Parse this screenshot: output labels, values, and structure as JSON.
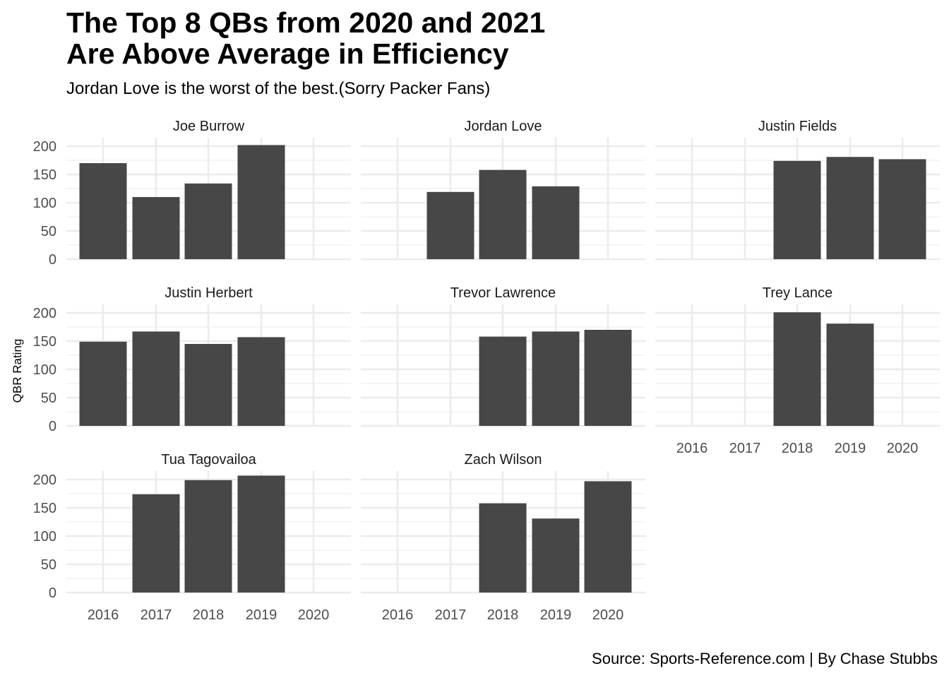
{
  "chart_data": {
    "type": "bar",
    "title": [
      "The Top 8 QBs from 2020 and 2021",
      "Are Above Average in Efficiency"
    ],
    "subtitle": "Jordan Love is the worst of the best.(Sorry Packer Fans)",
    "caption": "Source: Sports-Reference.com | By Chase Stubbs",
    "ylabel": "QBR Rating",
    "xlabel": "",
    "categories": [
      "2016",
      "2017",
      "2018",
      "2019",
      "2020"
    ],
    "yticks": [
      "0",
      "50",
      "100",
      "150",
      "200"
    ],
    "ylim": [
      0,
      215
    ],
    "grid": true,
    "legend": "none",
    "bar_color": "#474747",
    "grid_color": "#ebebeb",
    "facets": [
      {
        "name": "Joe Burrow",
        "values": [
          170,
          110,
          134,
          202,
          null
        ]
      },
      {
        "name": "Jordan Love",
        "values": [
          null,
          119,
          158,
          129,
          null
        ]
      },
      {
        "name": "Justin Fields",
        "values": [
          null,
          null,
          174,
          181,
          177
        ]
      },
      {
        "name": "Justin Herbert",
        "values": [
          149,
          167,
          145,
          157,
          null
        ]
      },
      {
        "name": "Trevor Lawrence",
        "values": [
          null,
          null,
          158,
          167,
          170
        ]
      },
      {
        "name": "Trey Lance",
        "values": [
          null,
          null,
          201,
          181,
          null
        ]
      },
      {
        "name": "Tua Tagovailoa",
        "values": [
          null,
          174,
          199,
          207,
          null
        ]
      },
      {
        "name": "Zach Wilson",
        "values": [
          null,
          null,
          158,
          131,
          197
        ]
      }
    ]
  }
}
